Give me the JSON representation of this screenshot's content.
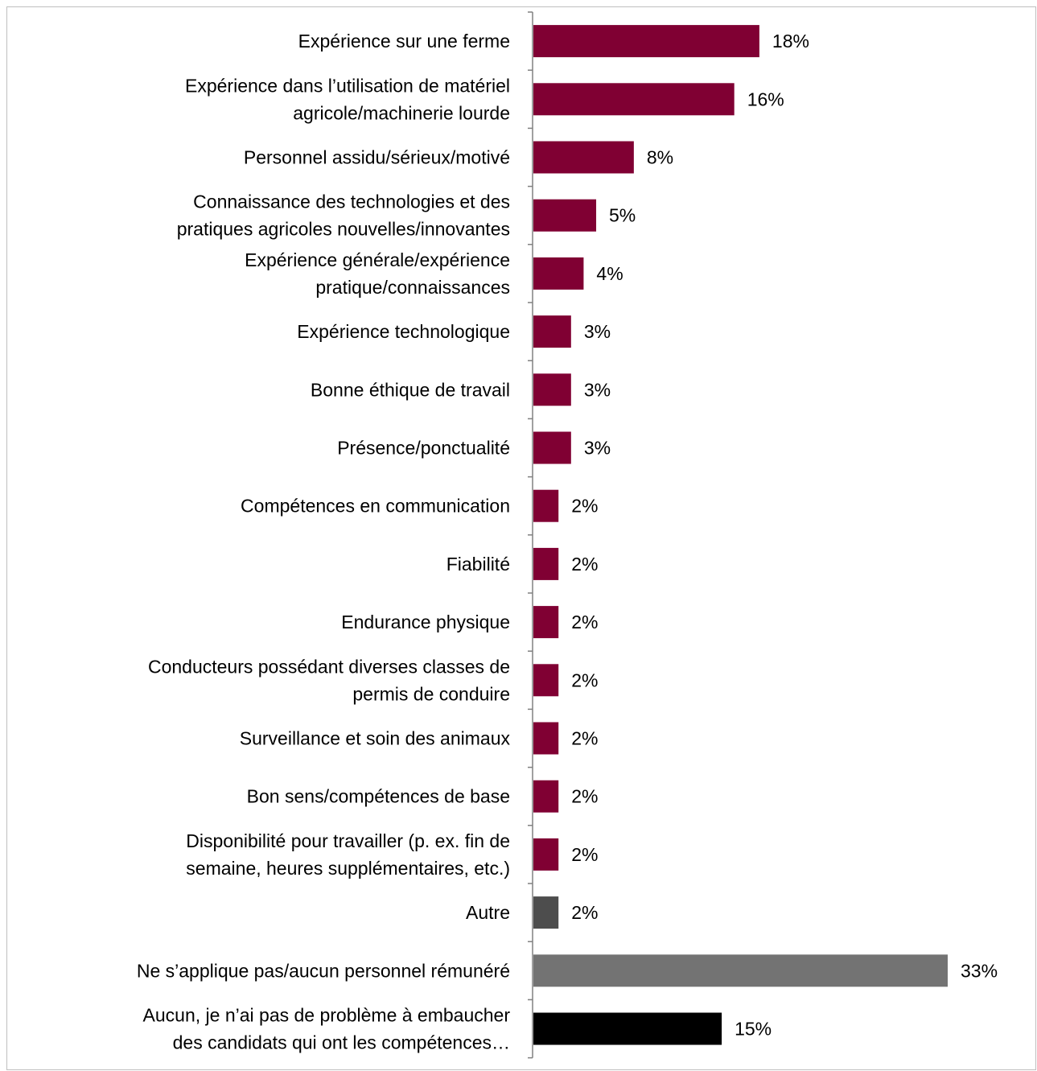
{
  "chart_data": {
    "type": "bar",
    "orientation": "horizontal",
    "categories": [
      [
        "Expérience sur une ferme"
      ],
      [
        "Expérience dans l’utilisation de matériel",
        "agricole/machinerie lourde"
      ],
      [
        "Personnel assidu/sérieux/motivé"
      ],
      [
        "Connaissance des technologies et des",
        "pratiques agricoles nouvelles/innovantes"
      ],
      [
        "Expérience générale/expérience",
        "pratique/connaissances"
      ],
      [
        "Expérience technologique"
      ],
      [
        "Bonne éthique de travail"
      ],
      [
        "Présence/ponctualité"
      ],
      [
        "Compétences en communication"
      ],
      [
        "Fiabilité"
      ],
      [
        "Endurance physique"
      ],
      [
        "Conducteurs possédant diverses classes de",
        "permis de conduire"
      ],
      [
        "Surveillance et soin des animaux"
      ],
      [
        "Bon sens/compétences de base"
      ],
      [
        "Disponibilité pour travailler (p. ex. fin de",
        "semaine, heures supplémentaires, etc.)"
      ],
      [
        "Autre"
      ],
      [
        "Ne s’applique pas/aucun personnel rémunéré"
      ],
      [
        "Aucun, je n’ai pas de problème à embaucher",
        "des candidats qui ont les compétences…"
      ]
    ],
    "values": [
      18,
      16,
      8,
      5,
      4,
      3,
      3,
      3,
      2,
      2,
      2,
      2,
      2,
      2,
      2,
      2,
      33,
      15
    ],
    "value_labels": [
      "18%",
      "16%",
      "8%",
      "5%",
      "4%",
      "3%",
      "3%",
      "3%",
      "2%",
      "2%",
      "2%",
      "2%",
      "2%",
      "2%",
      "2%",
      "2%",
      "33%",
      "15%"
    ],
    "bar_colors": [
      "#800033",
      "#800033",
      "#800033",
      "#800033",
      "#800033",
      "#800033",
      "#800033",
      "#800033",
      "#800033",
      "#800033",
      "#800033",
      "#800033",
      "#800033",
      "#800033",
      "#800033",
      "#4d4d4d",
      "#737373",
      "#000000"
    ],
    "xlim": [
      0,
      33
    ],
    "grid": false,
    "legend": "none"
  }
}
